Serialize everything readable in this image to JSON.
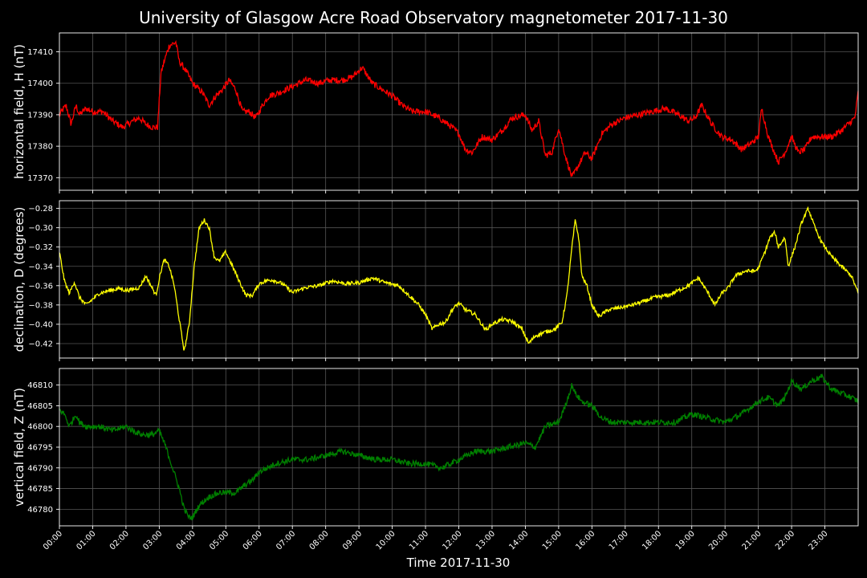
{
  "chart_data": {
    "type": "line",
    "title": "University of Glasgow Acre Road Observatory magnetometer 2017-11-30",
    "xlabel": "Time 2017-11-30",
    "xlim": [
      0,
      24
    ],
    "x_tick_labels": [
      "00:00",
      "01:00",
      "02:00",
      "03:00",
      "04:00",
      "05:00",
      "06:00",
      "07:00",
      "08:00",
      "09:00",
      "10:00",
      "11:00",
      "12:00",
      "13:00",
      "14:00",
      "15:00",
      "16:00",
      "17:00",
      "18:00",
      "19:00",
      "20:00",
      "21:00",
      "22:00",
      "23:00"
    ],
    "grid": true,
    "background": "#000000",
    "panels": [
      {
        "name": "horizontal",
        "ylabel": "horizontal field, H (nT)",
        "ylim": [
          17366,
          17416
        ],
        "yticks": [
          17370,
          17380,
          17390,
          17400,
          17410
        ],
        "ytick_labels": [
          "17370",
          "17380",
          "17390",
          "17400",
          "17410"
        ],
        "color": "#ff0000",
        "noise": 1.0,
        "x": [
          0,
          0.2,
          0.35,
          0.5,
          0.6,
          0.8,
          1,
          1.3,
          1.6,
          1.9,
          2.2,
          2.4,
          2.6,
          2.8,
          2.95,
          3.05,
          3.15,
          3.3,
          3.5,
          3.6,
          3.8,
          4,
          4.3,
          4.5,
          4.7,
          4.9,
          5.1,
          5.3,
          5.5,
          5.7,
          5.9,
          6.1,
          6.3,
          6.6,
          7,
          7.4,
          7.8,
          8.1,
          8.5,
          8.8,
          9.1,
          9.4,
          9.7,
          10,
          10.3,
          10.6,
          11,
          11.4,
          11.8,
          12,
          12.2,
          12.4,
          12.7,
          13,
          13.3,
          13.6,
          14,
          14.2,
          14.4,
          14.6,
          14.8,
          15,
          15.2,
          15.4,
          15.6,
          15.8,
          16,
          16.3,
          16.6,
          17,
          17.4,
          17.8,
          18.2,
          18.6,
          18.9,
          19.1,
          19.3,
          19.6,
          19.9,
          20.2,
          20.5,
          20.8,
          21,
          21.1,
          21.3,
          21.6,
          21.8,
          22,
          22.2,
          22.4,
          22.6,
          22.9,
          23.2,
          23.5,
          23.7,
          23.9,
          24
        ],
        "values": [
          17390,
          17393,
          17387,
          17393,
          17390,
          17392,
          17391,
          17391,
          17388,
          17386,
          17388,
          17389,
          17387,
          17386,
          17386,
          17403,
          17407,
          17412,
          17413,
          17407,
          17404,
          17400,
          17397,
          17393,
          17396,
          17398,
          17401,
          17398,
          17391,
          17391,
          17389,
          17393,
          17396,
          17397,
          17399,
          17401,
          17400,
          17401,
          17401,
          17402,
          17405,
          17400,
          17398,
          17396,
          17393,
          17391,
          17391,
          17389,
          17386,
          17384,
          17379,
          17378,
          17383,
          17382,
          17385,
          17389,
          17390,
          17385,
          17388,
          17377,
          17378,
          17386,
          17377,
          17370,
          17374,
          17378,
          17376,
          17384,
          17387,
          17389,
          17390,
          17391,
          17392,
          17390,
          17388,
          17389,
          17393,
          17387,
          17383,
          17382,
          17379,
          17381,
          17383,
          17392,
          17383,
          17375,
          17378,
          17383,
          17378,
          17379,
          17383,
          17383,
          17383,
          17385,
          17387,
          17389,
          17397
        ]
      },
      {
        "name": "declination",
        "ylabel": "declination, D (degrees)",
        "ylim": [
          -0.435,
          -0.272
        ],
        "yticks": [
          -0.42,
          -0.4,
          -0.38,
          -0.36,
          -0.34,
          -0.32,
          -0.3,
          -0.28
        ],
        "ytick_labels": [
          "−0.42",
          "−0.40",
          "−0.38",
          "−0.36",
          "−0.34",
          "−0.32",
          "−0.30",
          "−0.28"
        ],
        "color": "#ffff00",
        "noise": 0.002,
        "x": [
          0,
          0.15,
          0.3,
          0.45,
          0.6,
          0.8,
          1,
          1.2,
          1.5,
          1.8,
          2,
          2.2,
          2.4,
          2.6,
          2.75,
          2.9,
          3.05,
          3.15,
          3.3,
          3.45,
          3.6,
          3.75,
          3.9,
          4.05,
          4.2,
          4.35,
          4.5,
          4.65,
          4.8,
          5,
          5.2,
          5.4,
          5.6,
          5.8,
          6,
          6.2,
          6.4,
          6.7,
          7,
          7.4,
          7.8,
          8.2,
          8.6,
          9,
          9.4,
          9.8,
          10.2,
          10.5,
          10.8,
          11,
          11.2,
          11.4,
          11.6,
          11.8,
          12,
          12.2,
          12.5,
          12.8,
          13,
          13.3,
          13.6,
          13.9,
          14.1,
          14.3,
          14.6,
          14.9,
          15.1,
          15.25,
          15.4,
          15.5,
          15.6,
          15.7,
          15.85,
          16,
          16.2,
          16.5,
          16.8,
          17.1,
          17.5,
          17.9,
          18.3,
          18.6,
          18.9,
          19.2,
          19.5,
          19.7,
          19.9,
          20.1,
          20.3,
          20.6,
          20.9,
          21,
          21.2,
          21.35,
          21.5,
          21.6,
          21.8,
          21.9,
          22.1,
          22.3,
          22.5,
          22.7,
          22.9,
          23.2,
          23.5,
          23.8,
          24
        ],
        "values": [
          -0.325,
          -0.355,
          -0.368,
          -0.356,
          -0.372,
          -0.38,
          -0.374,
          -0.368,
          -0.365,
          -0.363,
          -0.365,
          -0.364,
          -0.362,
          -0.35,
          -0.36,
          -0.37,
          -0.345,
          -0.333,
          -0.34,
          -0.36,
          -0.395,
          -0.428,
          -0.4,
          -0.34,
          -0.3,
          -0.292,
          -0.3,
          -0.33,
          -0.335,
          -0.325,
          -0.34,
          -0.355,
          -0.37,
          -0.37,
          -0.358,
          -0.355,
          -0.354,
          -0.358,
          -0.367,
          -0.362,
          -0.36,
          -0.355,
          -0.358,
          -0.357,
          -0.352,
          -0.357,
          -0.36,
          -0.37,
          -0.38,
          -0.39,
          -0.405,
          -0.4,
          -0.398,
          -0.385,
          -0.378,
          -0.385,
          -0.39,
          -0.406,
          -0.4,
          -0.395,
          -0.397,
          -0.405,
          -0.42,
          -0.412,
          -0.408,
          -0.405,
          -0.398,
          -0.37,
          -0.32,
          -0.292,
          -0.31,
          -0.35,
          -0.36,
          -0.38,
          -0.392,
          -0.385,
          -0.383,
          -0.381,
          -0.377,
          -0.372,
          -0.37,
          -0.365,
          -0.36,
          -0.352,
          -0.368,
          -0.38,
          -0.368,
          -0.362,
          -0.35,
          -0.345,
          -0.345,
          -0.342,
          -0.325,
          -0.31,
          -0.305,
          -0.32,
          -0.31,
          -0.34,
          -0.32,
          -0.295,
          -0.28,
          -0.3,
          -0.315,
          -0.33,
          -0.34,
          -0.35,
          -0.368
        ]
      },
      {
        "name": "vertical",
        "ylabel": "vertical field, Z (nT)",
        "ylim": [
          46776,
          46814
        ],
        "yticks": [
          46780,
          46785,
          46790,
          46795,
          46800,
          46805,
          46810
        ],
        "ytick_labels": [
          "46780",
          "46785",
          "46790",
          "46795",
          "46800",
          "46805",
          "46810"
        ],
        "color": "#008000",
        "noise": 0.7,
        "x": [
          0,
          0.15,
          0.3,
          0.5,
          0.6,
          0.8,
          1.2,
          1.6,
          2,
          2.2,
          2.5,
          2.8,
          3,
          3.2,
          3.4,
          3.6,
          3.75,
          3.9,
          4,
          4.2,
          4.5,
          4.8,
          5,
          5.3,
          5.6,
          5.8,
          6,
          6.5,
          7,
          7.5,
          8,
          8.5,
          9,
          9.5,
          10,
          10.5,
          11,
          11.5,
          12,
          12.5,
          13,
          13.5,
          14,
          14.3,
          14.6,
          15,
          15.2,
          15.4,
          15.5,
          15.7,
          16,
          16.3,
          16.6,
          17,
          17.5,
          18,
          18.5,
          19,
          19.5,
          20,
          20.5,
          21,
          21.3,
          21.6,
          21.8,
          22,
          22.3,
          22.6,
          22.9,
          23.2,
          23.5,
          23.8,
          24
        ],
        "values": [
          46804,
          46803,
          46800,
          46803,
          46801,
          46800,
          46800,
          46799,
          46800,
          46799,
          46798,
          46798,
          46799,
          46795,
          46790,
          46785,
          46780,
          46778,
          46778,
          46781,
          46783,
          46784,
          46784,
          46784,
          46786,
          46787,
          46789,
          46791,
          46792,
          46792,
          46793,
          46794,
          46793,
          46792,
          46792,
          46791,
          46791,
          46790,
          46792,
          46794,
          46794,
          46795,
          46796,
          46795,
          46800,
          46801,
          46805,
          46810,
          46808,
          46806,
          46805,
          46802,
          46801,
          46801,
          46801,
          46801,
          46801,
          46803,
          46802,
          46801,
          46803,
          46806,
          46807,
          46805,
          46807,
          46811,
          46809,
          46811,
          46812,
          46809,
          46808,
          46807,
          46806
        ]
      }
    ]
  }
}
